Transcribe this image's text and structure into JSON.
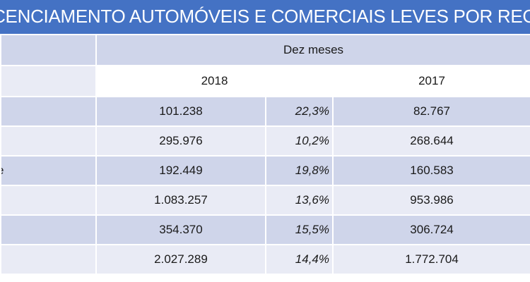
{
  "title": "LICENCIAMENTO AUTOMÓVEIS E COMERCIAIS LEVES POR REGIÃO",
  "header": {
    "period": "Dez meses",
    "year_current": "2018",
    "year_previous": "2017"
  },
  "rows": [
    {
      "region": "",
      "v2018": "101.238",
      "pct": "22,3%",
      "v2017": "82.767"
    },
    {
      "region": "",
      "v2018": "295.976",
      "pct": "10,2%",
      "v2017": "268.644"
    },
    {
      "region": "e",
      "v2018": "192.449",
      "pct": "19,8%",
      "v2017": "160.583"
    },
    {
      "region": "",
      "v2018": "1.083.257",
      "pct": "13,6%",
      "v2017": "953.986"
    },
    {
      "region": "",
      "v2018": "354.370",
      "pct": "15,5%",
      "v2017": "306.724"
    },
    {
      "region": "",
      "v2018": "2.027.289",
      "pct": "14,4%",
      "v2017": "1.772.704"
    }
  ]
}
